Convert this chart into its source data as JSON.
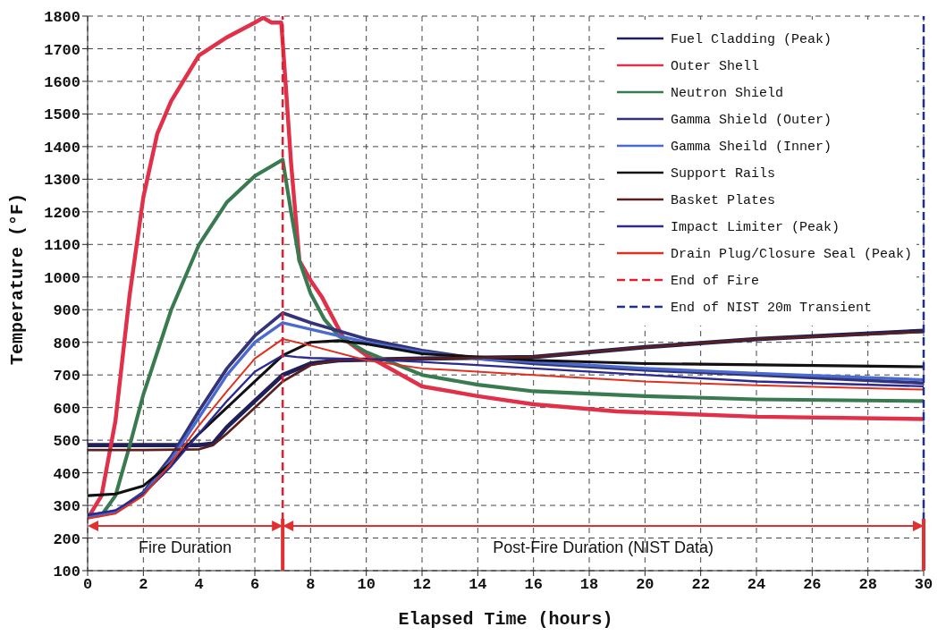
{
  "chart_data": {
    "type": "line",
    "xlabel": "Elapsed Time (hours)",
    "ylabel": "Temperature (°F)",
    "xlim": [
      0,
      30
    ],
    "xticks": [
      0,
      2,
      4,
      6,
      8,
      10,
      12,
      14,
      16,
      18,
      20,
      22,
      24,
      26,
      28,
      30
    ],
    "ylim": [
      100,
      1800
    ],
    "yticks": [
      100,
      200,
      300,
      400,
      500,
      600,
      700,
      800,
      900,
      1000,
      1100,
      1200,
      1300,
      1400,
      1500,
      1600,
      1700,
      1800
    ],
    "grid": true,
    "legend": "top right",
    "marker": "none",
    "line_style": "solid",
    "series": [
      {
        "name": "Fuel Cladding (Peak)",
        "color": "#1f1f5a",
        "x": [
          0,
          2,
          4,
          4.5,
          5,
          6,
          7,
          8,
          9,
          12,
          16,
          20,
          24,
          30
        ],
        "values": [
          485,
          485,
          485,
          490,
          540,
          620,
          700,
          735,
          745,
          750,
          755,
          785,
          810,
          835
        ]
      },
      {
        "name": "Outer Shell",
        "color": "#e0304a",
        "x": [
          0,
          0.5,
          1,
          1.5,
          2,
          2.5,
          3,
          4,
          5,
          6,
          6.3,
          6.6,
          6.95,
          7.1,
          7.3,
          7.6,
          8,
          8.4,
          9.2,
          10,
          12,
          14,
          16,
          19,
          24,
          30
        ],
        "values": [
          260,
          330,
          560,
          940,
          1245,
          1440,
          1540,
          1680,
          1735,
          1780,
          1795,
          1780,
          1780,
          1600,
          1350,
          1050,
          990,
          940,
          810,
          760,
          665,
          635,
          610,
          588,
          572,
          565
        ]
      },
      {
        "name": "Neutron Shield",
        "color": "#3a7a50",
        "x": [
          0,
          0.5,
          1,
          1.5,
          2,
          3,
          4,
          5,
          6,
          7,
          7.3,
          7.6,
          8,
          8.5,
          9,
          10,
          12,
          14,
          16,
          20,
          24,
          30
        ],
        "values": [
          265,
          270,
          330,
          480,
          640,
          900,
          1100,
          1230,
          1310,
          1360,
          1200,
          1050,
          950,
          870,
          820,
          770,
          700,
          670,
          650,
          635,
          625,
          620
        ]
      },
      {
        "name": "Gamma Shield (Outer)",
        "color": "#33337a",
        "x": [
          0,
          1,
          2,
          3,
          4,
          5,
          6,
          7,
          8,
          10,
          12,
          14,
          16,
          20,
          24,
          30
        ],
        "values": [
          270,
          280,
          340,
          450,
          590,
          720,
          820,
          890,
          860,
          810,
          775,
          750,
          735,
          715,
          700,
          675
        ]
      },
      {
        "name": "Gamma Sheild (Inner)",
        "color": "#4a6ad0",
        "x": [
          0,
          1,
          2,
          3,
          4,
          5,
          6,
          7,
          8,
          10,
          12,
          14,
          16,
          20,
          24,
          30
        ],
        "values": [
          265,
          280,
          335,
          440,
          570,
          700,
          800,
          860,
          840,
          800,
          770,
          750,
          740,
          720,
          705,
          685
        ]
      },
      {
        "name": "Support Rails",
        "color": "#111111",
        "x": [
          0,
          1,
          2,
          3,
          4,
          5,
          6,
          7,
          8,
          9,
          10,
          12,
          16,
          20,
          30
        ],
        "values": [
          330,
          335,
          360,
          430,
          520,
          600,
          680,
          760,
          800,
          805,
          795,
          765,
          745,
          735,
          725
        ]
      },
      {
        "name": "Basket Plates",
        "color": "#5a2020",
        "x": [
          0,
          2,
          4,
          4.5,
          5,
          6,
          7,
          8,
          9,
          12,
          16,
          20,
          24,
          30
        ],
        "values": [
          470,
          470,
          472,
          485,
          520,
          600,
          680,
          730,
          745,
          750,
          755,
          785,
          810,
          832
        ]
      },
      {
        "name": "Impact Limiter (Peak)",
        "color": "#2a2a90",
        "x": [
          0,
          1,
          2,
          3,
          4,
          5,
          6,
          7,
          7.5,
          8,
          10,
          12,
          16,
          20,
          24,
          30
        ],
        "values": [
          270,
          285,
          335,
          420,
          520,
          620,
          710,
          760,
          755,
          752,
          748,
          740,
          720,
          700,
          680,
          665
        ]
      },
      {
        "name": "Drain Plug/Closure Seal (Peak)",
        "color": "#e03020",
        "x": [
          0,
          1,
          2,
          3,
          4,
          5,
          6,
          7,
          8,
          10,
          12,
          16,
          20,
          24,
          30
        ],
        "values": [
          260,
          275,
          330,
          430,
          545,
          650,
          750,
          810,
          790,
          745,
          720,
          700,
          680,
          668,
          655
        ]
      }
    ],
    "ref_lines": [
      {
        "axis": "x",
        "value": 7,
        "color": "#e02030",
        "line_style": "dashed"
      },
      {
        "axis": "x",
        "value": 30,
        "color": "#1f2f8a",
        "line_style": "dashed"
      }
    ],
    "annotations": [
      "Fire Duration",
      "Post-Fire Duration (NIST Data)",
      "End of Fire",
      "End of NIST 20m Transient"
    ]
  }
}
